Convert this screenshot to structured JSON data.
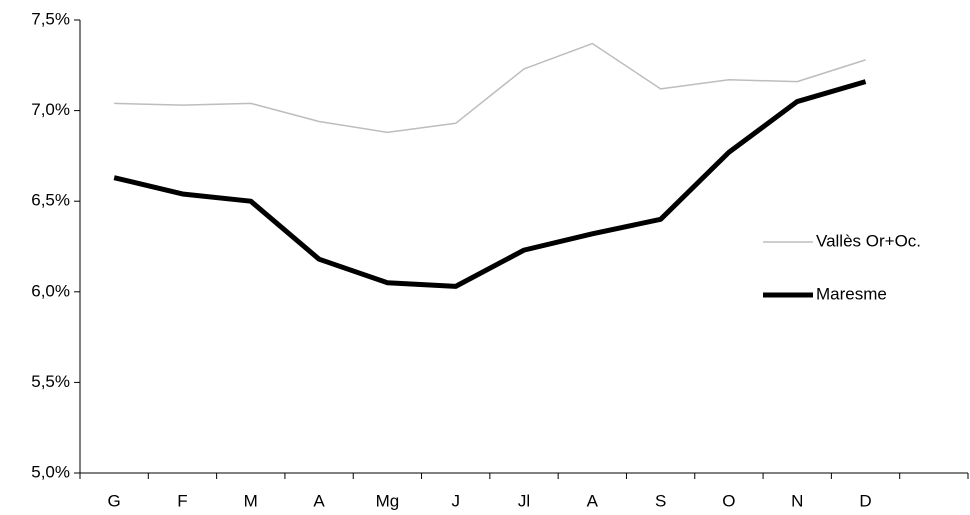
{
  "chart_data": {
    "type": "line",
    "categories": [
      "G",
      "F",
      "M",
      "A",
      "Mg",
      "J",
      "Jl",
      "A",
      "S",
      "O",
      "N",
      "D",
      null
    ],
    "series": [
      {
        "name": "Vallès Or+Oc.",
        "color": "#bdbdbd",
        "width": 1.5,
        "values": [
          7.04,
          7.03,
          7.04,
          6.94,
          6.88,
          6.93,
          7.23,
          7.37,
          7.12,
          7.17,
          7.16,
          7.28,
          null
        ]
      },
      {
        "name": "Maresme",
        "color": "#000000",
        "width": 5,
        "values": [
          6.63,
          6.54,
          6.5,
          6.18,
          6.05,
          6.03,
          6.23,
          6.32,
          6.4,
          6.77,
          7.05,
          7.16,
          null
        ]
      }
    ],
    "ylim": [
      5.0,
      7.5
    ],
    "yticks": [
      {
        "value": 5.0,
        "label": "5,0%"
      },
      {
        "value": 5.5,
        "label": "5,5%"
      },
      {
        "value": 6.0,
        "label": "6,0%"
      },
      {
        "value": 6.5,
        "label": "6,5%"
      },
      {
        "value": 7.0,
        "label": "7,0%"
      },
      {
        "value": 7.5,
        "label": "7,5%"
      }
    ],
    "grid": false,
    "legend": "right"
  }
}
